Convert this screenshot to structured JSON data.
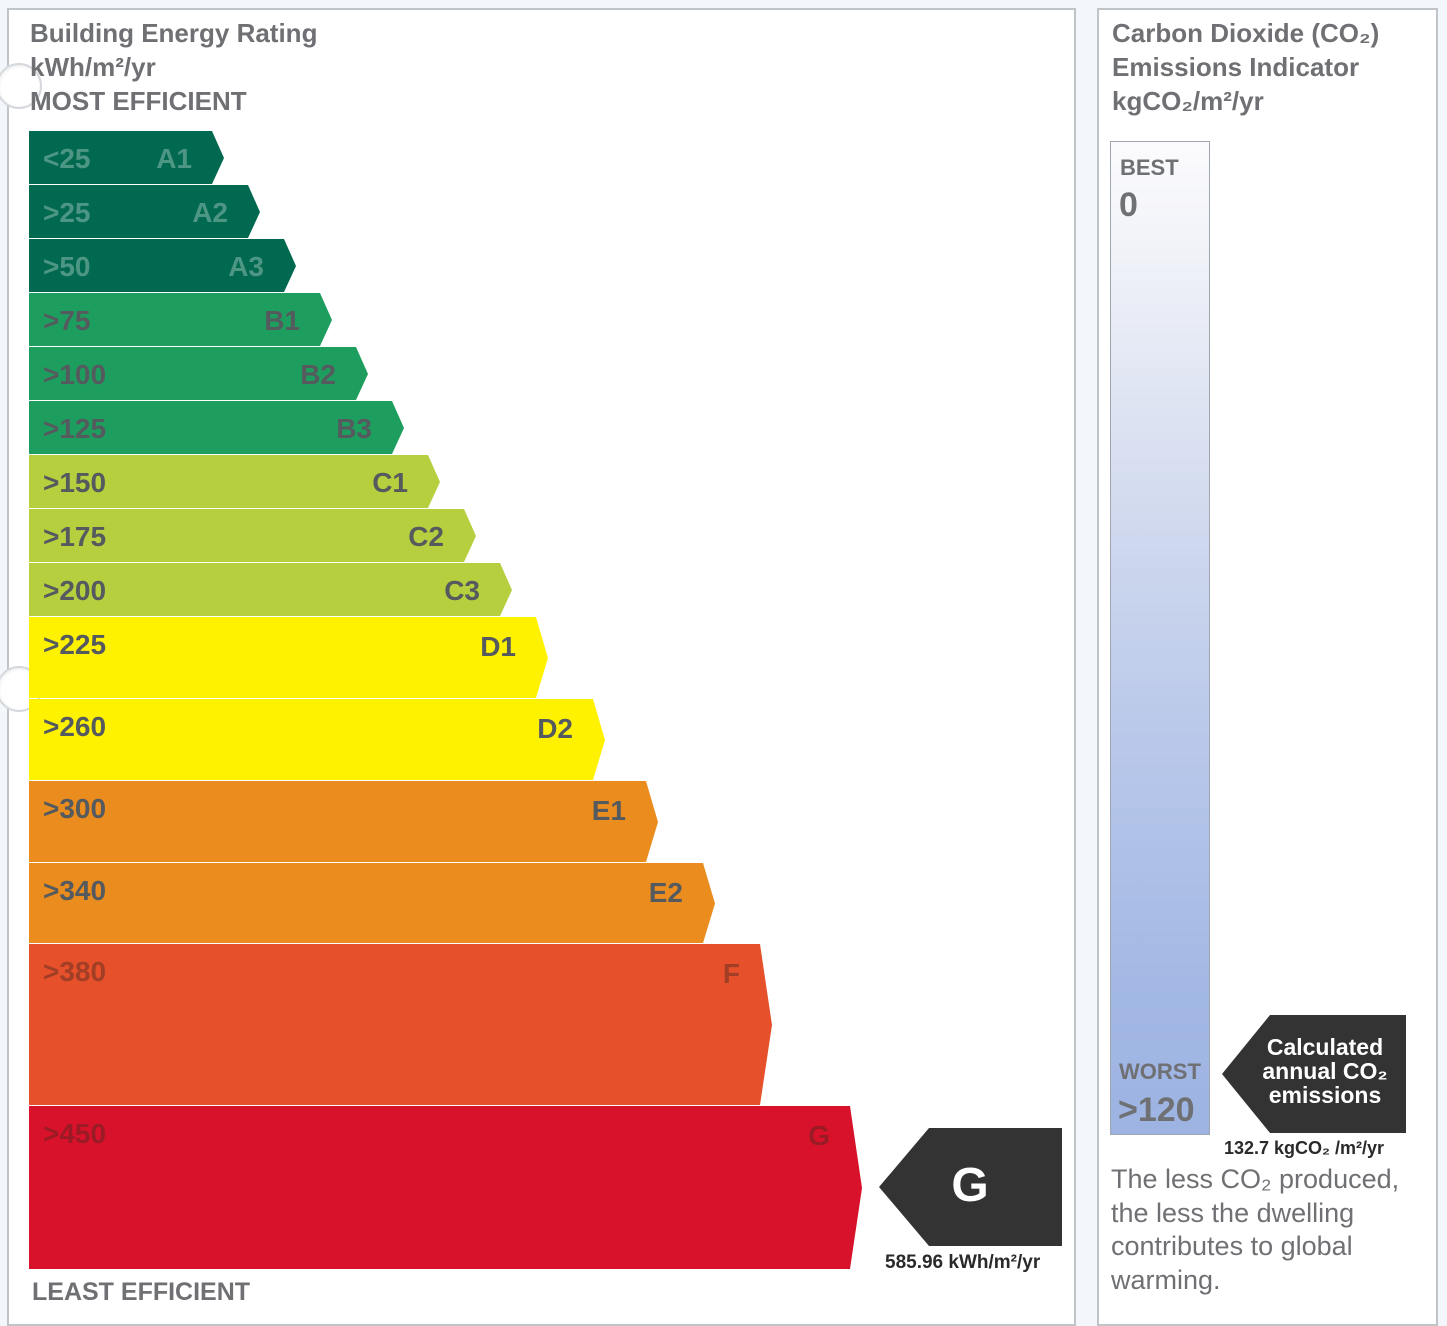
{
  "ber": {
    "title": "Building Energy Rating",
    "unit": "kWh/m²/yr",
    "most_efficient": "MOST EFFICIENT",
    "least_efficient": "LEAST EFFICIENT",
    "bands": [
      {
        "low": "<25",
        "code": "A1",
        "color": "#00694f"
      },
      {
        "low": ">25",
        "code": "A2",
        "color": "#00694f"
      },
      {
        "low": ">50",
        "code": "A3",
        "color": "#00694f"
      },
      {
        "low": ">75",
        "code": "B1",
        "color": "#1e9e5e"
      },
      {
        "low": ">100",
        "code": "B2",
        "color": "#1e9e5e"
      },
      {
        "low": ">125",
        "code": "B3",
        "color": "#1e9e5e"
      },
      {
        "low": ">150",
        "code": "C1",
        "color": "#b5cf3e"
      },
      {
        "low": ">175",
        "code": "C2",
        "color": "#b5cf3e"
      },
      {
        "low": ">200",
        "code": "C3",
        "color": "#b5cf3e"
      },
      {
        "low": ">225",
        "code": "D1",
        "color": "#fff200"
      },
      {
        "low": ">260",
        "code": "D2",
        "color": "#fff200"
      },
      {
        "low": ">300",
        "code": "E1",
        "color": "#eb8c1f"
      },
      {
        "low": ">340",
        "code": "E2",
        "color": "#eb8c1f"
      },
      {
        "low": ">380",
        "code": "F",
        "color": "#e6502a"
      },
      {
        "low": ">450",
        "code": "G",
        "color": "#d8122a"
      }
    ],
    "result": {
      "grade": "G",
      "value": "585.96 kWh/m²/yr",
      "color": "#333333"
    }
  },
  "co2": {
    "title_lines": [
      "Carbon Dioxide (CO₂)",
      "Emissions Indicator",
      "kgCO₂/m²/yr"
    ],
    "best_label": "BEST",
    "best_value": "0",
    "worst_label": "WORST",
    "worst_value": ">120",
    "arrow_lines": [
      "Calculated",
      "annual CO₂",
      "emissions"
    ],
    "value": "132.7 kgCO₂ /m²/yr",
    "note_lines": [
      "The less CO₂ produced,",
      "the less the dwelling",
      "contributes to global",
      "warming."
    ]
  }
}
